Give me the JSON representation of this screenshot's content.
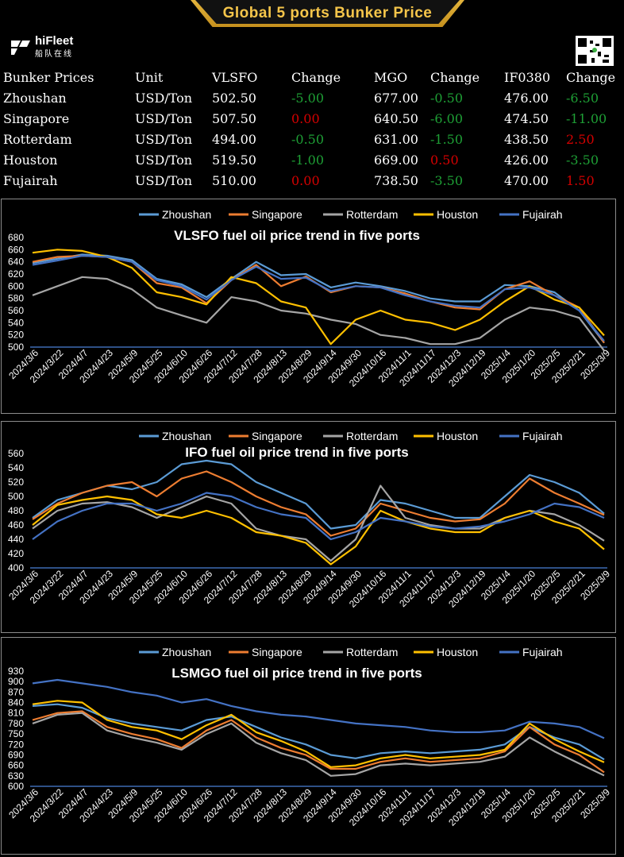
{
  "header": {
    "title": "Global 5 ports  Bunker Price"
  },
  "brand": {
    "name": "hiFleet",
    "sub": "船队在线"
  },
  "table": {
    "columns": [
      "Bunker Prices",
      "Unit",
      "VLSFO",
      "Change",
      "MGO",
      "Change",
      "IF0380",
      "Change"
    ],
    "rows": [
      {
        "port": "Zhoushan",
        "unit": "USD/Ton",
        "vlsfo": "502.50",
        "vlsfo_chg": "-5.00",
        "mgo": "677.00",
        "mgo_chg": "-0.50",
        "ifo": "476.00",
        "ifo_chg": "-6.50"
      },
      {
        "port": "Singapore",
        "unit": "USD/Ton",
        "vlsfo": "507.50",
        "vlsfo_chg": "0.00",
        "mgo": "640.50",
        "mgo_chg": "-6.00",
        "ifo": "474.50",
        "ifo_chg": "-11.00"
      },
      {
        "port": "Rotterdam",
        "unit": "USD/Ton",
        "vlsfo": "494.00",
        "vlsfo_chg": "-0.50",
        "mgo": "631.00",
        "mgo_chg": "-1.50",
        "ifo": "438.50",
        "ifo_chg": "2.50"
      },
      {
        "port": "Houston",
        "unit": "USD/Ton",
        "vlsfo": "519.50",
        "vlsfo_chg": "-1.00",
        "mgo": "669.00",
        "mgo_chg": "0.50",
        "ifo": "426.00",
        "ifo_chg": "-3.50"
      },
      {
        "port": "Fujairah",
        "unit": "USD/Ton",
        "vlsfo": "510.00",
        "vlsfo_chg": "0.00",
        "mgo": "738.50",
        "mgo_chg": "-3.50",
        "ifo": "470.00",
        "ifo_chg": "1.50"
      }
    ]
  },
  "colors": {
    "up": "#d40000",
    "down": "#1e9f35",
    "zero": "#d40000",
    "axis": "#4a7fd6"
  },
  "chart_data": [
    {
      "type": "line",
      "title": "VLSFO fuel oil price trend in five ports",
      "x_labels": [
        "2024/3/6",
        "2024/3/22",
        "2024/4/7",
        "2024/4/23",
        "2024/5/9",
        "2024/5/25",
        "2024/6/10",
        "2024/6/26",
        "2024/7/12",
        "2024/7/28",
        "2024/8/13",
        "2024/8/29",
        "2024/9/14",
        "2024/9/30",
        "2024/10/16",
        "2024/11/1",
        "2024/11/17",
        "2024/12/3",
        "2024/12/19",
        "2025/1/4",
        "2025/1/20",
        "2025/2/5",
        "2025/2/21",
        "2025/3/9"
      ],
      "y_ticks": [
        500,
        520,
        540,
        560,
        580,
        600,
        620,
        640,
        660,
        680
      ],
      "ylim": [
        500,
        680
      ],
      "legend_position": "top",
      "series": [
        {
          "name": "Zhoushan",
          "color": "#5b9bd5",
          "values": [
            638,
            645,
            652,
            650,
            643,
            612,
            603,
            582,
            612,
            640,
            618,
            620,
            598,
            606,
            600,
            592,
            580,
            575,
            575,
            602,
            600,
            590,
            560,
            507
          ]
        },
        {
          "name": "Singapore",
          "color": "#ed7d31",
          "values": [
            640,
            648,
            650,
            648,
            640,
            605,
            598,
            572,
            610,
            635,
            600,
            616,
            590,
            600,
            598,
            588,
            575,
            565,
            562,
            595,
            608,
            585,
            565,
            507
          ]
        },
        {
          "name": "Rotterdam",
          "color": "#a5a5a5",
          "values": [
            585,
            600,
            615,
            612,
            595,
            565,
            552,
            540,
            582,
            575,
            560,
            555,
            545,
            538,
            520,
            515,
            505,
            505,
            515,
            545,
            565,
            560,
            548,
            494
          ]
        },
        {
          "name": "Houston",
          "color": "#ffc000",
          "values": [
            655,
            660,
            658,
            648,
            630,
            590,
            582,
            570,
            615,
            605,
            575,
            565,
            505,
            545,
            560,
            545,
            540,
            528,
            545,
            575,
            600,
            578,
            565,
            519
          ]
        },
        {
          "name": "Fujairah",
          "color": "#4472c4",
          "values": [
            635,
            642,
            650,
            648,
            640,
            610,
            600,
            578,
            610,
            632,
            612,
            614,
            592,
            600,
            598,
            585,
            575,
            568,
            565,
            595,
            598,
            585,
            560,
            510
          ]
        }
      ]
    },
    {
      "type": "line",
      "title": "IFO fuel oil price trend in five ports",
      "x_labels": [
        "2024/3/6",
        "2024/3/22",
        "2024/4/7",
        "2024/4/23",
        "2024/5/9",
        "2024/5/25",
        "2024/6/10",
        "2024/6/26",
        "2024/7/12",
        "2024/7/28",
        "2024/8/13",
        "2024/8/29",
        "2024/9/14",
        "2024/9/30",
        "2024/10/16",
        "2024/11/1",
        "2024/11/17",
        "2024/12/3",
        "2024/12/19",
        "2025/1/4",
        "2025/1/20",
        "2025/2/5",
        "2025/2/21",
        "2025/3/9"
      ],
      "y_ticks": [
        400,
        420,
        440,
        460,
        480,
        500,
        520,
        540,
        560
      ],
      "ylim": [
        400,
        560
      ],
      "legend_position": "top",
      "series": [
        {
          "name": "Zhoushan",
          "color": "#5b9bd5",
          "values": [
            470,
            495,
            505,
            515,
            510,
            520,
            545,
            550,
            545,
            520,
            505,
            490,
            455,
            460,
            495,
            490,
            480,
            470,
            470,
            500,
            530,
            520,
            505,
            476
          ]
        },
        {
          "name": "Singapore",
          "color": "#ed7d31",
          "values": [
            468,
            490,
            505,
            515,
            520,
            500,
            525,
            535,
            520,
            500,
            485,
            475,
            445,
            455,
            490,
            480,
            470,
            465,
            468,
            490,
            525,
            505,
            490,
            474
          ]
        },
        {
          "name": "Rotterdam",
          "color": "#a5a5a5",
          "values": [
            455,
            480,
            490,
            492,
            485,
            470,
            485,
            500,
            490,
            455,
            445,
            440,
            410,
            440,
            515,
            470,
            460,
            455,
            455,
            470,
            480,
            475,
            460,
            438
          ]
        },
        {
          "name": "Houston",
          "color": "#ffc000",
          "values": [
            460,
            488,
            495,
            500,
            495,
            475,
            470,
            480,
            470,
            450,
            445,
            435,
            405,
            430,
            480,
            465,
            455,
            450,
            450,
            470,
            480,
            465,
            455,
            426
          ]
        },
        {
          "name": "Fujairah",
          "color": "#4472c4",
          "values": [
            440,
            465,
            480,
            490,
            490,
            480,
            490,
            505,
            500,
            485,
            475,
            470,
            440,
            450,
            470,
            465,
            458,
            455,
            458,
            465,
            475,
            490,
            485,
            470
          ]
        }
      ]
    },
    {
      "type": "line",
      "title": "LSMGO fuel oil price trend in five ports",
      "x_labels": [
        "2024/3/6",
        "2024/3/22",
        "2024/4/7",
        "2024/4/23",
        "2024/5/9",
        "2024/5/25",
        "2024/6/10",
        "2024/6/26",
        "2024/7/12",
        "2024/7/28",
        "2024/8/13",
        "2024/8/29",
        "2024/9/14",
        "2024/9/30",
        "2024/10/16",
        "2024/11/1",
        "2024/11/17",
        "2024/12/3",
        "2024/12/19",
        "2025/1/4",
        "2025/1/20",
        "2025/2/5",
        "2025/2/21",
        "2025/3/9"
      ],
      "y_ticks": [
        600,
        630,
        660,
        690,
        720,
        750,
        780,
        810,
        840,
        870,
        900,
        930
      ],
      "ylim": [
        600,
        930
      ],
      "legend_position": "top",
      "series": [
        {
          "name": "Zhoushan",
          "color": "#5b9bd5",
          "values": [
            830,
            835,
            825,
            795,
            780,
            770,
            760,
            790,
            800,
            770,
            740,
            720,
            690,
            680,
            695,
            700,
            695,
            700,
            705,
            720,
            770,
            740,
            720,
            677
          ]
        },
        {
          "name": "Singapore",
          "color": "#ed7d31",
          "values": [
            790,
            810,
            815,
            770,
            750,
            735,
            710,
            760,
            790,
            740,
            710,
            690,
            650,
            650,
            670,
            680,
            670,
            675,
            680,
            700,
            770,
            720,
            690,
            640
          ]
        },
        {
          "name": "Rotterdam",
          "color": "#a5a5a5",
          "values": [
            780,
            805,
            810,
            760,
            740,
            725,
            705,
            750,
            780,
            725,
            695,
            675,
            630,
            635,
            660,
            665,
            660,
            665,
            670,
            685,
            740,
            700,
            665,
            631
          ]
        },
        {
          "name": "Houston",
          "color": "#ffc000",
          "values": [
            835,
            845,
            840,
            790,
            770,
            760,
            735,
            775,
            805,
            755,
            730,
            700,
            655,
            660,
            680,
            690,
            680,
            685,
            690,
            705,
            780,
            735,
            700,
            669
          ]
        },
        {
          "name": "Fujairah",
          "color": "#4472c4",
          "values": [
            895,
            905,
            895,
            885,
            870,
            860,
            840,
            850,
            830,
            815,
            805,
            800,
            790,
            780,
            775,
            770,
            760,
            755,
            755,
            760,
            785,
            780,
            770,
            738
          ]
        }
      ]
    }
  ]
}
